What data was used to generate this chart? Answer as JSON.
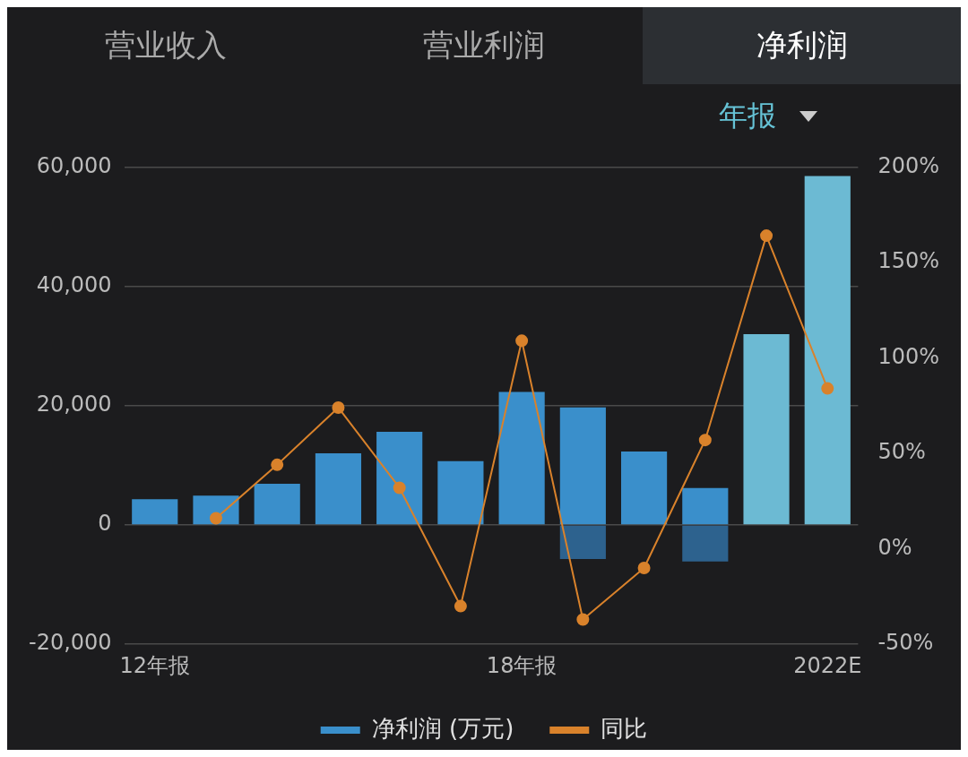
{
  "chart_data": {
    "type": "bar",
    "annotations": [
      "营业收入",
      "营业利润",
      "净利润",
      "年报"
    ],
    "categories": [
      "12年报",
      null,
      null,
      null,
      null,
      null,
      "18年报",
      null,
      null,
      null,
      null,
      "2022E"
    ],
    "stacked": true,
    "series": [
      {
        "name": "净利润 (万元)",
        "colors": [
          "#3a8fcb",
          "#3a8fcb",
          "#3a8fcb",
          "#3a8fcb",
          "#3a8fcb",
          "#3a8fcb",
          "#3a8fcb",
          "#3a8fcb",
          "#3a8fcb",
          "#3a8fcb",
          "#6cbad3",
          "#6cbad3"
        ],
        "values": [
          4300,
          4900,
          6900,
          12000,
          15600,
          10700,
          22300,
          19700,
          12300,
          6200,
          32000,
          58500
        ]
      },
      {
        "color": "#2d628e",
        "values": [
          null,
          null,
          null,
          null,
          null,
          null,
          null,
          -5700,
          null,
          -6100,
          null,
          null
        ]
      },
      {
        "name": "同比",
        "type": "line",
        "axis": "y2",
        "color": "#d9822b",
        "marker": "circle",
        "values": [
          null,
          16,
          44,
          74,
          32,
          -30,
          109,
          -37,
          -10,
          57,
          164,
          84
        ]
      }
    ],
    "ylim": [
      -20000,
      60000
    ],
    "yticks": [
      {
        "value": -20000,
        "label": "-20,000"
      },
      0,
      {
        "value": 20000,
        "label": "20,000"
      },
      {
        "value": 40000,
        "label": "40,000"
      },
      {
        "value": 60000,
        "label": "60,000"
      }
    ],
    "y2lim": [
      -50,
      200
    ],
    "y2ticks": [
      {
        "value": -50,
        "label": "-50%"
      },
      {
        "value": 0,
        "label": "0%"
      },
      {
        "value": 50,
        "label": "50%"
      },
      {
        "value": 100,
        "label": "100%"
      },
      {
        "value": 150,
        "label": "150%"
      },
      {
        "value": 200,
        "label": "200%"
      }
    ],
    "grid": "y",
    "legend": "bottom"
  }
}
